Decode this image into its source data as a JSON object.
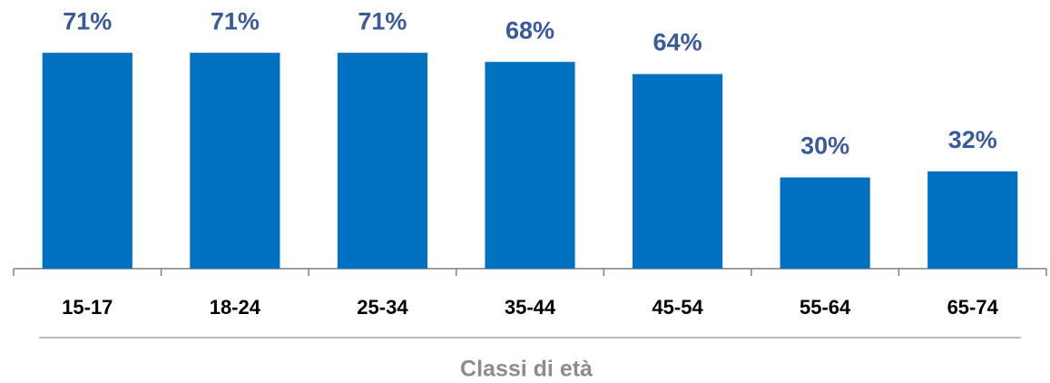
{
  "chart_data": {
    "type": "bar",
    "categories": [
      "15-17",
      "18-24",
      "25-34",
      "35-44",
      "45-54",
      "55-64",
      "65-74"
    ],
    "values": [
      71,
      71,
      71,
      68,
      64,
      30,
      32
    ],
    "value_labels": [
      "71%",
      "71%",
      "71%",
      "68%",
      "64%",
      "30%",
      "32%"
    ],
    "color": "#0070c0",
    "x_label": "Classi di età"
  }
}
